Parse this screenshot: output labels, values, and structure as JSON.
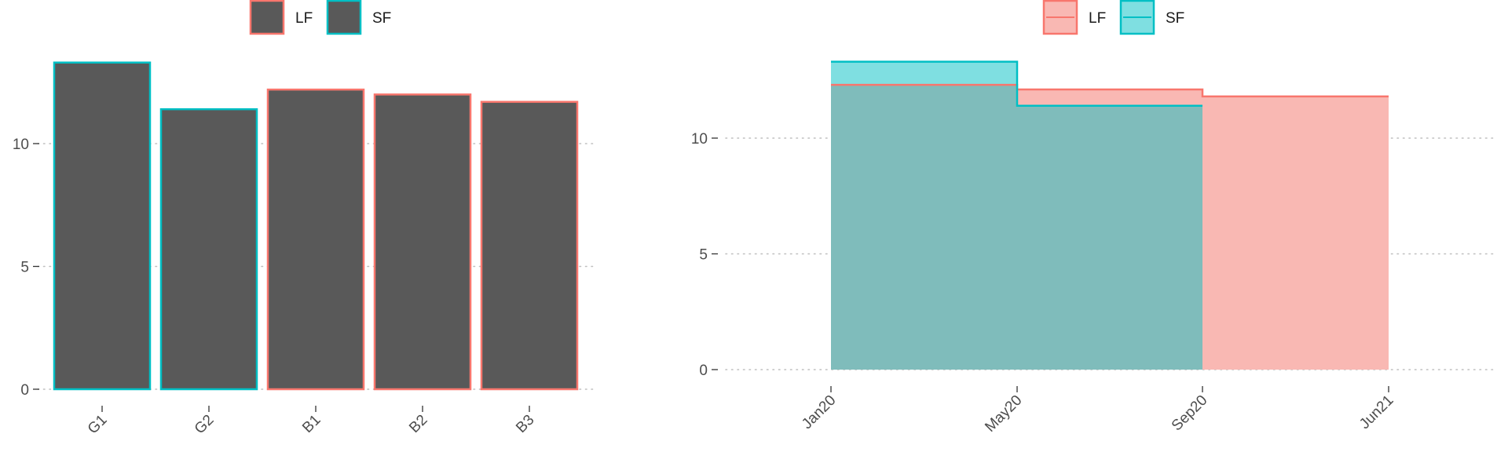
{
  "chart_data": [
    {
      "type": "bar",
      "categories": [
        "G1",
        "G2",
        "B1",
        "B2",
        "B3"
      ],
      "values": [
        13.3,
        11.4,
        12.2,
        12.0,
        11.7
      ],
      "outline_group": [
        "SF",
        "SF",
        "LF",
        "LF",
        "LF"
      ],
      "fill_color": "#595959",
      "ylim": [
        0,
        13.5
      ],
      "y_ticks": [
        0,
        5,
        10
      ],
      "legend": {
        "position": "top",
        "entries": [
          "LF",
          "SF"
        ]
      },
      "grid": "dotted horizontal"
    },
    {
      "type": "area",
      "step": true,
      "x_ticks": [
        "Jan20",
        "May20",
        "Sep20",
        "Jun21"
      ],
      "series": [
        {
          "name": "LF",
          "x": [
            "Jan20",
            "May20",
            "Sep20",
            "Jun21"
          ],
          "values": [
            12.3,
            12.1,
            11.8,
            11.8
          ]
        },
        {
          "name": "SF",
          "x": [
            "Jan20",
            "May20",
            "Sep20"
          ],
          "values": [
            13.3,
            11.4,
            11.4
          ]
        }
      ],
      "ylim": [
        0,
        13.5
      ],
      "y_ticks": [
        0,
        5,
        10
      ],
      "legend": {
        "position": "top",
        "entries": [
          "LF",
          "SF"
        ]
      },
      "grid": "dotted horizontal"
    }
  ],
  "colors": {
    "LF": "#f8766d",
    "SF": "#00bfc4",
    "LF_fill": "#f9b8b3",
    "SF_fill": "#7fdfe1",
    "overlap_fill": "#7fbcbb",
    "grid": "#bfbfbf",
    "axis_text": "#4d4d4d"
  }
}
